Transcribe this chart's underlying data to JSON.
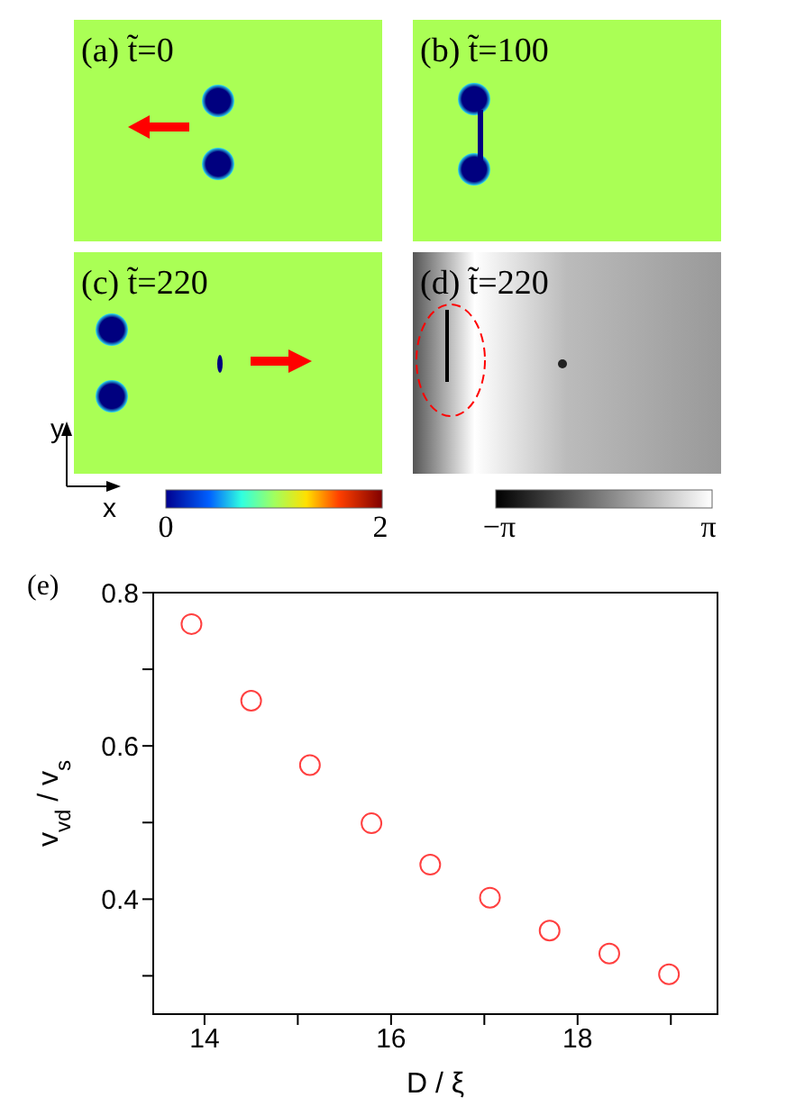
{
  "chart_data": {
    "type": "scatter",
    "title": "(e)",
    "xlabel": "D / ξ",
    "ylabel": "v$_{vd}$ / v$_{s}$",
    "x": [
      13.86,
      14.5,
      15.13,
      15.79,
      16.42,
      17.06,
      17.7,
      18.34,
      18.98
    ],
    "series": [
      {
        "color": "#ff4040",
        "values": [
          0.759,
          0.659,
          0.575,
          0.499,
          0.445,
          0.402,
          0.359,
          0.329,
          0.302
        ]
      }
    ],
    "marker": "circle",
    "xlim": [
      13.45,
      19.5
    ],
    "xticks": [
      14,
      {
        "value": 15,
        "label": null
      },
      16,
      {
        "value": 17,
        "label": null
      },
      18,
      {
        "value": 19,
        "label": null
      }
    ],
    "ylim": [
      0.25,
      0.8
    ],
    "yticks": [
      {
        "value": 0.3,
        "label": null
      },
      0.4,
      {
        "value": 0.5,
        "label": null
      },
      0.6,
      {
        "value": 0.7,
        "label": null
      },
      0.8
    ],
    "annotations": [
      "(a) t̃=0",
      "(b) t̃=100",
      "(c) t̃=220",
      "(d) t̃=220",
      "y",
      "x",
      "0",
      "2",
      "−π",
      "π"
    ]
  }
}
